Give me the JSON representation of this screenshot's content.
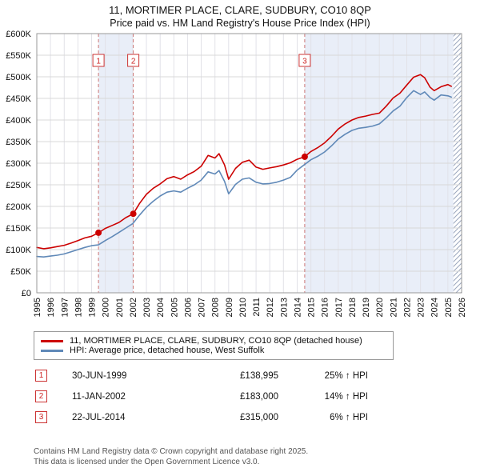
{
  "title": "11, MORTIMER PLACE, CLARE, SUDBURY, CO10 8QP",
  "subtitle": "Price paid vs. HM Land Registry's House Price Index (HPI)",
  "chart_data": {
    "type": "line",
    "title": "11, MORTIMER PLACE, CLARE, SUDBURY, CO10 8QP",
    "subtitle": "Price paid vs. HM Land Registry's House Price Index (HPI)",
    "grid": true,
    "legend_position": "bottom",
    "xlim": [
      1995,
      2026
    ],
    "ylim": [
      0,
      600000
    ],
    "ytick_step": 50000,
    "band_color": "#e9eef8",
    "series": [
      {
        "name": "11, MORTIMER PLACE, CLARE, SUDBURY, CO10 8QP (detached house)",
        "color": "#cc0000",
        "x": [
          1995,
          1995.5,
          1996,
          1996.5,
          1997,
          1997.5,
          1998,
          1998.5,
          1999,
          1999.5,
          2000,
          2000.5,
          2001,
          2001.5,
          2002.04,
          2002.5,
          2003,
          2003.5,
          2004,
          2004.5,
          2005,
          2005.5,
          2006,
          2006.5,
          2007,
          2007.5,
          2008,
          2008.3,
          2008.7,
          2009,
          2009.5,
          2010,
          2010.5,
          2011,
          2011.5,
          2012,
          2012.5,
          2013,
          2013.5,
          2014,
          2014.55,
          2015,
          2015.5,
          2016,
          2016.5,
          2017,
          2017.5,
          2018,
          2018.5,
          2019,
          2019.5,
          2020,
          2020.5,
          2021,
          2021.5,
          2022,
          2022.5,
          2023,
          2023.3,
          2023.7,
          2024,
          2024.5,
          2025,
          2025.25
        ],
        "y": [
          105000,
          102000,
          104000,
          107000,
          110000,
          115000,
          121000,
          127000,
          131000,
          138995,
          149000,
          156000,
          163000,
          174000,
          183000,
          207000,
          228000,
          242000,
          252000,
          264000,
          269000,
          263000,
          273000,
          281000,
          293000,
          318000,
          312000,
          322000,
          296000,
          263000,
          288000,
          302000,
          307000,
          291000,
          286000,
          289000,
          292000,
          296000,
          301000,
          309000,
          315000,
          327000,
          336000,
          347000,
          362000,
          379000,
          391000,
          400000,
          406000,
          409000,
          413000,
          416000,
          432000,
          451000,
          462000,
          481000,
          499000,
          505000,
          498000,
          476000,
          468000,
          477000,
          482000,
          478000
        ]
      },
      {
        "name": "HPI: Average price, detached house, West Suffolk",
        "color": "#6089b8",
        "x": [
          1995,
          1995.5,
          1996,
          1996.5,
          1997,
          1997.5,
          1998,
          1998.5,
          1999,
          1999.5,
          2000,
          2000.5,
          2001,
          2001.5,
          2002,
          2002.5,
          2003,
          2003.5,
          2004,
          2004.5,
          2005,
          2005.5,
          2006,
          2006.5,
          2007,
          2007.5,
          2008,
          2008.3,
          2008.7,
          2009,
          2009.5,
          2010,
          2010.5,
          2011,
          2011.5,
          2012,
          2012.5,
          2013,
          2013.5,
          2014,
          2014.5,
          2015,
          2015.5,
          2016,
          2016.5,
          2017,
          2017.5,
          2018,
          2018.5,
          2019,
          2019.5,
          2020,
          2020.5,
          2021,
          2021.5,
          2022,
          2022.5,
          2023,
          2023.3,
          2023.7,
          2024,
          2024.5,
          2025,
          2025.25
        ],
        "y": [
          84000,
          83000,
          85000,
          87000,
          90000,
          95000,
          100000,
          105000,
          109000,
          111000,
          121000,
          130000,
          140000,
          150000,
          160000,
          180000,
          198000,
          212000,
          224000,
          233000,
          236000,
          233000,
          242000,
          250000,
          261000,
          280000,
          275000,
          283000,
          258000,
          229000,
          251000,
          263000,
          266000,
          256000,
          252000,
          253000,
          256000,
          261000,
          267000,
          284000,
          296000,
          308000,
          316000,
          326000,
          340000,
          356000,
          367000,
          376000,
          381000,
          383000,
          386000,
          391000,
          405000,
          421000,
          432000,
          452000,
          468000,
          459000,
          465000,
          452000,
          446000,
          458000,
          456000,
          453000
        ]
      }
    ],
    "markers": [
      {
        "label": "1",
        "x": 1999.5,
        "y": 138995
      },
      {
        "label": "2",
        "x": 2002.04,
        "y": 183000
      },
      {
        "label": "3",
        "x": 2014.55,
        "y": 315000
      }
    ],
    "bands": [
      {
        "from": 1999.5,
        "to": 2002.04
      },
      {
        "from": 2014.55,
        "to": 2025.4
      }
    ],
    "hatch_band": {
      "from": 2025.4,
      "to": 2026
    }
  },
  "transactions": [
    {
      "num": "1",
      "date": "30-JUN-1999",
      "price": "£138,995",
      "hpi": "25% ↑ HPI"
    },
    {
      "num": "2",
      "date": "11-JAN-2002",
      "price": "£183,000",
      "hpi": "14% ↑ HPI"
    },
    {
      "num": "3",
      "date": "22-JUL-2014",
      "price": "£315,000",
      "hpi": "6% ↑ HPI"
    }
  ],
  "footer": {
    "line1": "Contains HM Land Registry data © Crown copyright and database right 2025.",
    "line2": "This data is licensed under the Open Government Licence v3.0."
  }
}
